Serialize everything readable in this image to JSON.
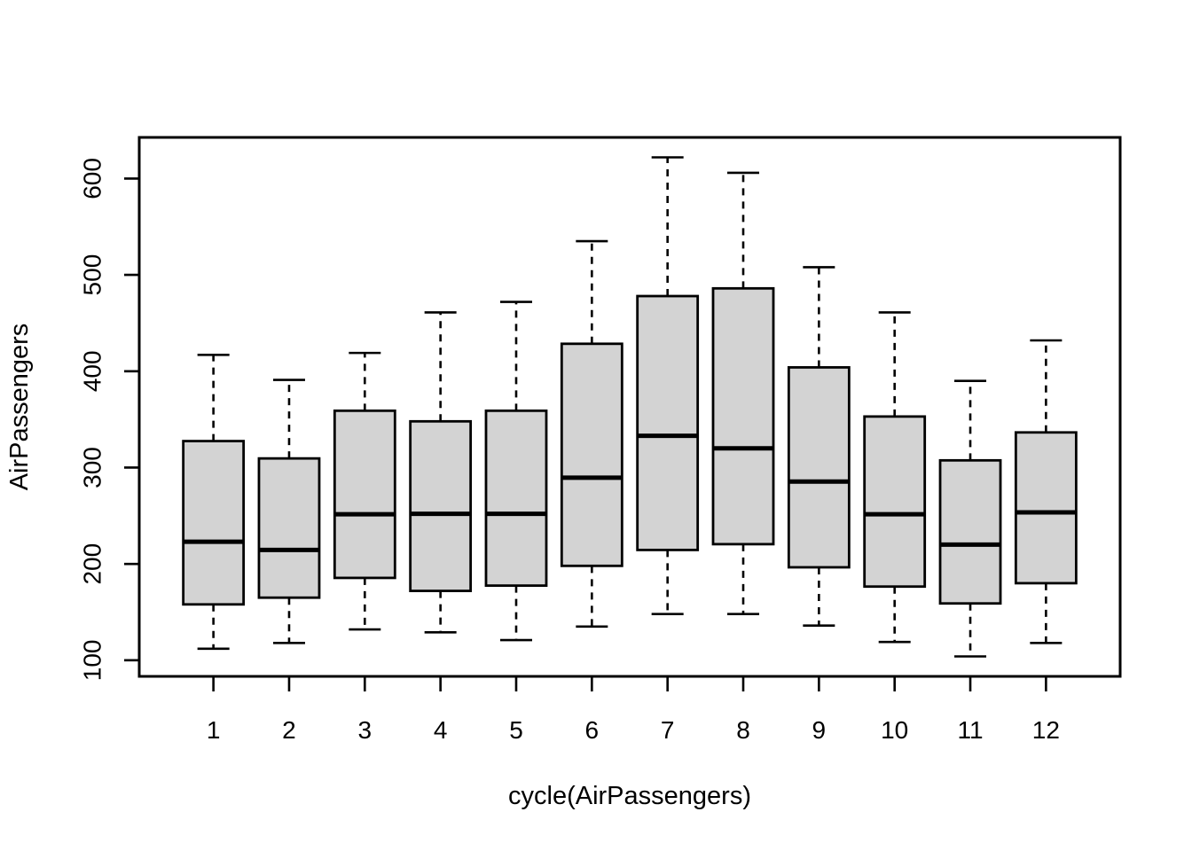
{
  "figure": {
    "background": "#ffffff",
    "text_color": "#000000"
  },
  "chart_data": {
    "type": "boxplot",
    "title": "",
    "xlabel": "cycle(AirPassengers)",
    "ylabel": "AirPassengers",
    "categories": [
      "1",
      "2",
      "3",
      "4",
      "5",
      "6",
      "7",
      "8",
      "9",
      "10",
      "11",
      "12"
    ],
    "y_ticks": [
      100,
      200,
      300,
      400,
      500,
      600
    ],
    "xlim": [
      0.02,
      12.98
    ],
    "ylim": [
      83.3,
      642.7
    ],
    "grid": false,
    "legend": null,
    "box_fill": "#D3D3D3",
    "line_color": "#000000",
    "boxes": [
      {
        "month": "1",
        "whisker_low": 112,
        "q1": 158.0,
        "median": 223.0,
        "q3": 327.5,
        "whisker_high": 417
      },
      {
        "month": "2",
        "whisker_low": 118,
        "q1": 165.0,
        "median": 214.5,
        "q3": 309.5,
        "whisker_high": 391
      },
      {
        "month": "3",
        "whisker_low": 132,
        "q1": 185.5,
        "median": 251.5,
        "q3": 359.0,
        "whisker_high": 419
      },
      {
        "month": "4",
        "whisker_low": 129,
        "q1": 172.0,
        "median": 252.0,
        "q3": 348.0,
        "whisker_high": 461
      },
      {
        "month": "5",
        "whisker_low": 121,
        "q1": 177.5,
        "median": 252.0,
        "q3": 359.0,
        "whisker_high": 472
      },
      {
        "month": "6",
        "whisker_low": 135,
        "q1": 198.0,
        "median": 289.5,
        "q3": 428.5,
        "whisker_high": 535
      },
      {
        "month": "7",
        "whisker_low": 148,
        "q1": 214.5,
        "median": 333.0,
        "q3": 478.0,
        "whisker_high": 622
      },
      {
        "month": "8",
        "whisker_low": 148,
        "q1": 220.5,
        "median": 320.0,
        "q3": 486.0,
        "whisker_high": 606
      },
      {
        "month": "9",
        "whisker_low": 136,
        "q1": 196.5,
        "median": 285.5,
        "q3": 404.0,
        "whisker_high": 508
      },
      {
        "month": "10",
        "whisker_low": 119,
        "q1": 176.5,
        "median": 251.5,
        "q3": 353.0,
        "whisker_high": 461
      },
      {
        "month": "11",
        "whisker_low": 104,
        "q1": 159.0,
        "median": 220.0,
        "q3": 307.5,
        "whisker_high": 390
      },
      {
        "month": "12",
        "whisker_low": 118,
        "q1": 180.0,
        "median": 253.5,
        "q3": 336.5,
        "whisker_high": 432
      }
    ]
  }
}
